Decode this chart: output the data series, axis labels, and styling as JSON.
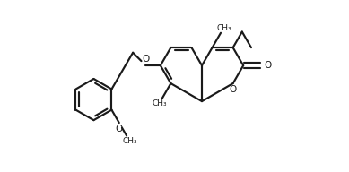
{
  "bg_color": "#ffffff",
  "line_color": "#1a1a1a",
  "lw": 1.55,
  "sl": 0.36,
  "figsize": [
    3.89,
    1.92
  ],
  "dpi": 100,
  "xlim": [
    -2.35,
    2.35
  ],
  "ylim": [
    -1.05,
    1.05
  ]
}
